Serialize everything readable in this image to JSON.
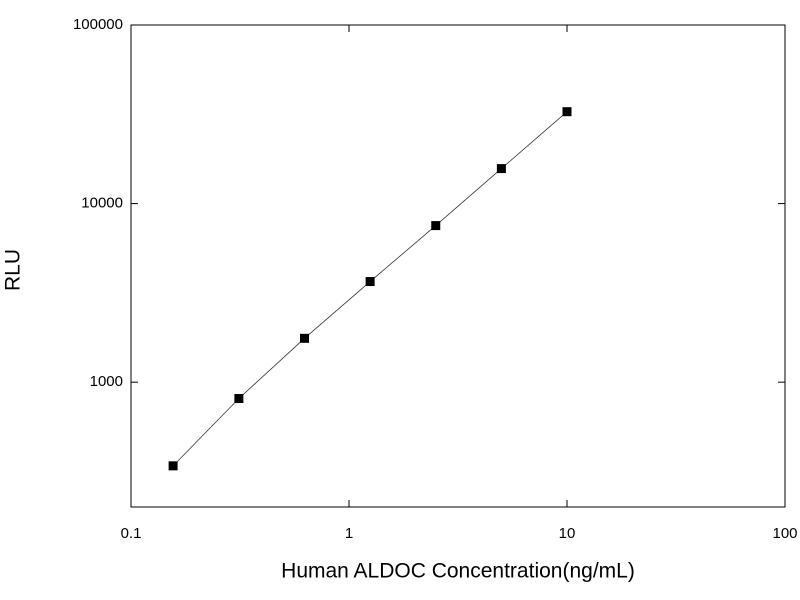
{
  "chart_data": {
    "type": "scatter",
    "x_label": "Human ALDOC Concentration(ng/mL)",
    "y_label": "RLU",
    "x": [
      0.156,
      0.3125,
      0.625,
      1.25,
      2.5,
      5,
      10
    ],
    "values": [
      340,
      810,
      1760,
      3660,
      7530,
      15700,
      32700
    ],
    "color": "#000000",
    "line": true,
    "xlog": true,
    "ylog": true,
    "xlim": [
      0.1,
      100
    ],
    "ylim": [
      200,
      100000
    ],
    "xticks": [
      0.1,
      1,
      10,
      100
    ],
    "yticks": [
      1000,
      10000,
      100000
    ]
  }
}
